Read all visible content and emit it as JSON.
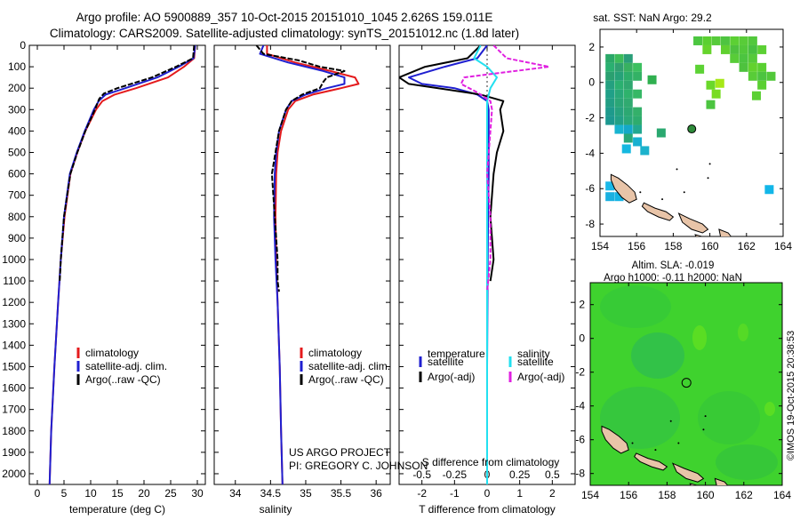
{
  "header": {
    "line1": "Argo profile: AO 5900889_357 10-Oct-2015 20151010_1045 2.626S 159.011E",
    "line2": "Climatology: CARS2009. Satellite-adjusted climatology: synTS_20151012.nc (1.8d later)"
  },
  "depth_ticks": [
    0,
    100,
    200,
    300,
    400,
    500,
    600,
    700,
    800,
    900,
    1000,
    1100,
    1200,
    1300,
    1400,
    1500,
    1600,
    1700,
    1800,
    1900,
    2000
  ],
  "colors": {
    "climatology": "#e41a1c",
    "satellite": "#1f1fd0",
    "argo": "#000000",
    "satellite_salinity": "#22e0f0",
    "argo_salinity_adj": "#e020e0"
  },
  "chart_data": [
    {
      "id": "temperature",
      "type": "line",
      "xlabel": "temperature (deg C)",
      "xlim": [
        -1.5,
        31.5
      ],
      "ylim": [
        0,
        2050
      ],
      "xticks": [
        0,
        5,
        10,
        15,
        20,
        25,
        30
      ],
      "legend": [
        "climatology",
        "satellite-adj. clim.",
        "Argo(..raw -QC)"
      ],
      "series": [
        {
          "name": "climatology",
          "color": "#e41a1c",
          "depth": [
            0,
            60,
            100,
            150,
            200,
            230,
            260,
            300,
            400,
            500,
            600,
            800,
            1000,
            1200,
            1500,
            1800,
            2050
          ],
          "values": [
            29.6,
            29.4,
            27.5,
            24.5,
            18.5,
            14.5,
            12.2,
            11.0,
            9.0,
            7.5,
            6.2,
            5.1,
            4.4,
            3.9,
            3.2,
            2.6,
            2.3
          ]
        },
        {
          "name": "satellite-adj. clim.",
          "color": "#1f1fd0",
          "depth": [
            0,
            60,
            100,
            150,
            200,
            230,
            260,
            300,
            400,
            500,
            600,
            800,
            1000,
            1200,
            1500,
            1800,
            2050
          ],
          "values": [
            29.6,
            29.3,
            26.5,
            22.5,
            16.5,
            12.8,
            11.5,
            10.6,
            8.9,
            7.4,
            6.1,
            5.0,
            4.4,
            3.9,
            3.2,
            2.6,
            2.3
          ]
        },
        {
          "name": "Argo(..raw -QC)",
          "color": "#000000",
          "depth": [
            0,
            60,
            100,
            150,
            200,
            225,
            250,
            300,
            400,
            500,
            600,
            800,
            1000,
            1100
          ],
          "values": [
            29.4,
            29.2,
            26.0,
            21.5,
            15.0,
            12.5,
            11.6,
            10.8,
            9.0,
            7.5,
            6.2,
            5.0,
            4.4,
            4.2
          ]
        }
      ]
    },
    {
      "id": "salinity",
      "type": "line",
      "xlabel": "salinity",
      "xlim": [
        33.7,
        36.2
      ],
      "ylim": [
        0,
        2050
      ],
      "xticks": [
        34,
        34.5,
        35,
        35.5,
        36
      ],
      "legend": [
        "climatology",
        "satellite-adj. clim.",
        "Argo(..raw -QC)"
      ],
      "series": [
        {
          "name": "climatology",
          "color": "#e41a1c",
          "depth": [
            0,
            40,
            80,
            120,
            150,
            180,
            200,
            230,
            260,
            300,
            400,
            500,
            600,
            800,
            1000,
            1200,
            1500,
            1800,
            2050
          ],
          "values": [
            34.45,
            34.45,
            34.85,
            35.35,
            35.7,
            35.75,
            35.5,
            35.1,
            34.85,
            34.75,
            34.65,
            34.6,
            34.58,
            34.57,
            34.58,
            34.6,
            34.63,
            34.65,
            34.67
          ]
        },
        {
          "name": "satellite-adj. clim.",
          "color": "#1f1fd0",
          "depth": [
            0,
            40,
            80,
            120,
            150,
            180,
            200,
            230,
            260,
            300,
            400,
            500,
            600,
            800,
            1000,
            1200,
            1500,
            1800,
            2050
          ],
          "values": [
            34.4,
            34.35,
            34.75,
            35.25,
            35.55,
            35.55,
            35.3,
            35.0,
            34.8,
            34.72,
            34.62,
            34.58,
            34.56,
            34.55,
            34.57,
            34.6,
            34.63,
            34.65,
            34.67
          ]
        },
        {
          "name": "Argo(..raw -QC)",
          "color": "#000000",
          "depth": [
            0,
            40,
            70,
            100,
            120,
            150,
            170,
            200,
            230,
            260,
            300,
            400,
            500,
            600,
            800,
            900,
            1000,
            1100,
            1150
          ],
          "values": [
            34.3,
            34.4,
            34.9,
            35.2,
            35.55,
            35.3,
            35.25,
            35.2,
            34.95,
            34.8,
            34.72,
            34.62,
            34.57,
            34.52,
            34.56,
            34.58,
            34.6,
            34.6,
            34.62
          ]
        }
      ]
    },
    {
      "id": "difference",
      "type": "line",
      "xlabel": "T difference from climatology",
      "xlabel_top": "S difference from climatology",
      "xlim": [
        -2.7,
        2.7
      ],
      "ylim": [
        0,
        2050
      ],
      "xticks": [
        -2,
        -1,
        0,
        1,
        2
      ],
      "xtick_labels_top": [
        -0.5,
        -0.25,
        0,
        0.25,
        0.5
      ],
      "legend_left_title": "temperature",
      "legend_right_title": "salinity",
      "legend": [
        "satellite",
        "Argo(-adj)",
        "satellite",
        "Argo(-adj)"
      ],
      "series": [
        {
          "name": "T satellite",
          "color": "#1f1fd0",
          "depth": [
            0,
            60,
            100,
            150,
            180,
            200,
            230,
            260,
            300,
            400,
            600,
            800,
            1000,
            1500,
            2050
          ],
          "values": [
            0.0,
            -0.3,
            -1.3,
            -2.4,
            -2.0,
            -1.0,
            -0.3,
            0.0,
            0.05,
            0.05,
            0.05,
            0.03,
            0.02,
            0.0,
            0.0
          ]
        },
        {
          "name": "T Argo(-adj)",
          "color": "#000000",
          "depth": [
            0,
            60,
            100,
            150,
            180,
            200,
            230,
            260,
            300,
            400,
            500,
            600,
            700,
            800,
            900,
            1000,
            1100
          ],
          "values": [
            -0.2,
            -0.6,
            -1.9,
            -2.7,
            -2.4,
            -1.5,
            -0.2,
            0.5,
            0.4,
            0.5,
            0.3,
            0.2,
            0.15,
            0.1,
            0.15,
            0.2,
            0.1
          ]
        },
        {
          "name": "S satellite",
          "color": "#22e0f0",
          "depth": [
            0,
            60,
            100,
            150,
            200,
            260,
            300,
            600,
            1000,
            1500,
            2050
          ],
          "values": [
            -0.2,
            -0.4,
            0.0,
            0.3,
            0.1,
            0.0,
            0.0,
            0.0,
            0.0,
            0.0,
            0.0
          ]
        },
        {
          "name": "S Argo(-adj)",
          "color": "#e020e0",
          "depth": [
            0,
            60,
            100,
            150,
            180,
            220,
            260,
            300,
            400,
            600,
            800,
            1000,
            1150
          ],
          "values": [
            0.2,
            0.6,
            1.9,
            -0.7,
            -0.8,
            -0.3,
            0.1,
            0.15,
            0.1,
            0.0,
            0.1,
            0.1,
            0.0
          ]
        }
      ]
    }
  ],
  "maps": [
    {
      "id": "sst",
      "title": "sat. SST: NaN Argo: 29.2",
      "xlim": [
        154,
        164
      ],
      "ylim": [
        -8.7,
        3
      ],
      "xticks": [
        154,
        156,
        158,
        160,
        162,
        164
      ],
      "yticks": [
        -8,
        -6,
        -4,
        -2,
        0,
        2
      ],
      "argo_position": {
        "lon": 159.011,
        "lat": -2.626
      }
    },
    {
      "id": "sla",
      "title_line1": "Altim. SLA: -0.019",
      "title_line2": "Argo h1000: -0.11 h2000: NaN",
      "xlim": [
        154,
        164
      ],
      "ylim": [
        -8.7,
        3.3
      ],
      "xticks": [
        154,
        156,
        158,
        160,
        162,
        164
      ],
      "yticks": [
        -8,
        -6,
        -4,
        -2,
        0,
        2
      ],
      "argo_position": {
        "lon": 159.011,
        "lat": -2.626
      }
    }
  ],
  "footer": {
    "project_line1": "US ARGO PROJECT",
    "project_line2": "PI: GREGORY C. JOHNSON",
    "credit": "©IMOS 19-Oct-2015 20:38:53"
  }
}
